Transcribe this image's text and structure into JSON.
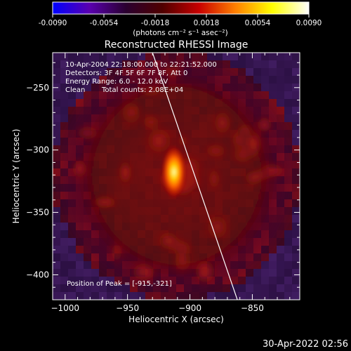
{
  "chart_data": {
    "type": "heatmap",
    "title": "Reconstructed RHESSI Image",
    "xlabel": "Heliocentric X (arcsec)",
    "ylabel": "Heliocentric Y (arcsec)",
    "xlim": [
      -1010,
      -812
    ],
    "ylim": [
      -420,
      -222
    ],
    "xticks": [
      -1000,
      -950,
      -900,
      -850
    ],
    "yticks": [
      -250,
      -300,
      -350,
      -400
    ],
    "colorbar": {
      "range": [
        -0.009,
        0.009
      ],
      "ticks": [
        "-0.0090",
        "-0.0054",
        "-0.0018",
        "0.0018",
        "0.0054",
        "0.0090"
      ],
      "unit_label": "(photons cm⁻² s⁻¹ asec⁻²)",
      "colors": [
        "#0000ff",
        "#5a00b0",
        "#2a0030",
        "#500000",
        "#c80000",
        "#ff8000",
        "#ffff00",
        "#ffffff"
      ]
    },
    "annotations": {
      "time": "10-Apr-2004 22:18:00.000 to 22:21:52.000",
      "detectors": "Detectors: 3F 4F 5F 6F 7F 8F, Att 0",
      "energy": "Energy Range: 6.0 - 12.0 keV",
      "algorithm": "Clean",
      "counts": "Total counts: 2.08E+04",
      "peak": "Position of Peak = [-915,-321]"
    },
    "peak": {
      "x": -915,
      "y": -321
    },
    "limb": [
      [
        -930,
        -222
      ],
      [
        -862,
        -420
      ]
    ]
  },
  "footer": {
    "date": "30-Apr-2022 02:56"
  }
}
